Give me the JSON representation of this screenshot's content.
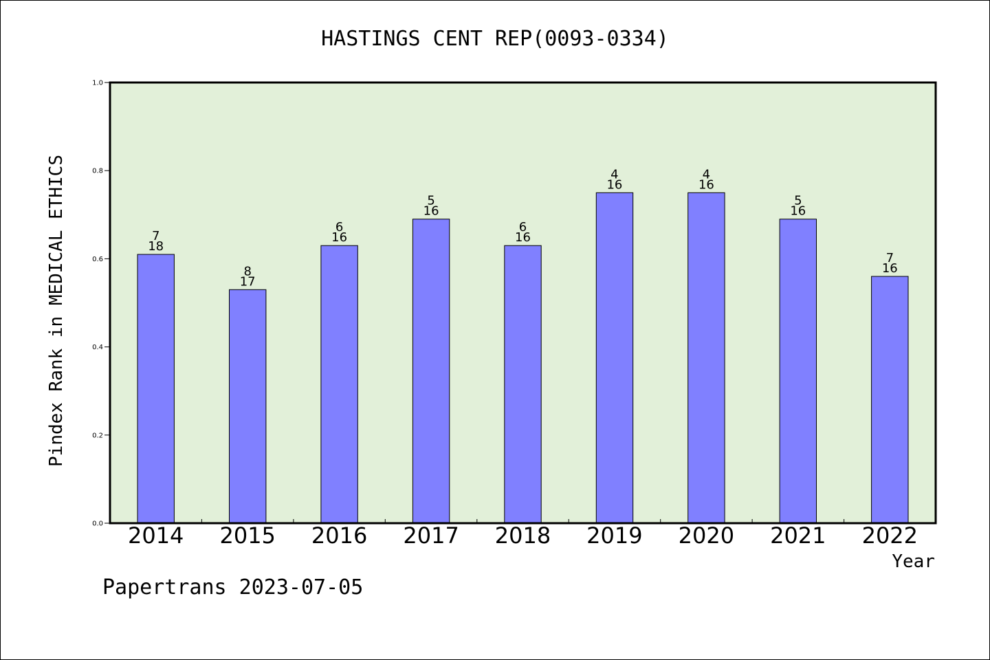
{
  "chart_data": {
    "type": "bar",
    "title": "HASTINGS CENT REP(0093-0334)",
    "xlabel": "Year",
    "ylabel": "Pindex Rank in MEDICAL ETHICS",
    "categories": [
      "2014",
      "2015",
      "2016",
      "2017",
      "2018",
      "2019",
      "2020",
      "2021",
      "2022"
    ],
    "values": [
      0.61,
      0.53,
      0.63,
      0.69,
      0.63,
      0.75,
      0.75,
      0.69,
      0.56
    ],
    "rank": [
      "7",
      "8",
      "6",
      "5",
      "6",
      "4",
      "4",
      "5",
      "7"
    ],
    "total": [
      "18",
      "17",
      "16",
      "16",
      "16",
      "16",
      "16",
      "16",
      "16"
    ],
    "ylim": [
      0,
      1
    ],
    "yticks": [
      "0.0",
      "0.2",
      "0.4",
      "0.6",
      "0.8",
      "1.0"
    ],
    "grid": false,
    "legend": "none",
    "colors": {
      "plot_background": "#e2f0d9",
      "bar_fill": "#8080ff",
      "bar_stroke": "#000000"
    }
  },
  "footer": {
    "text": "Papertrans 2023-07-05"
  }
}
